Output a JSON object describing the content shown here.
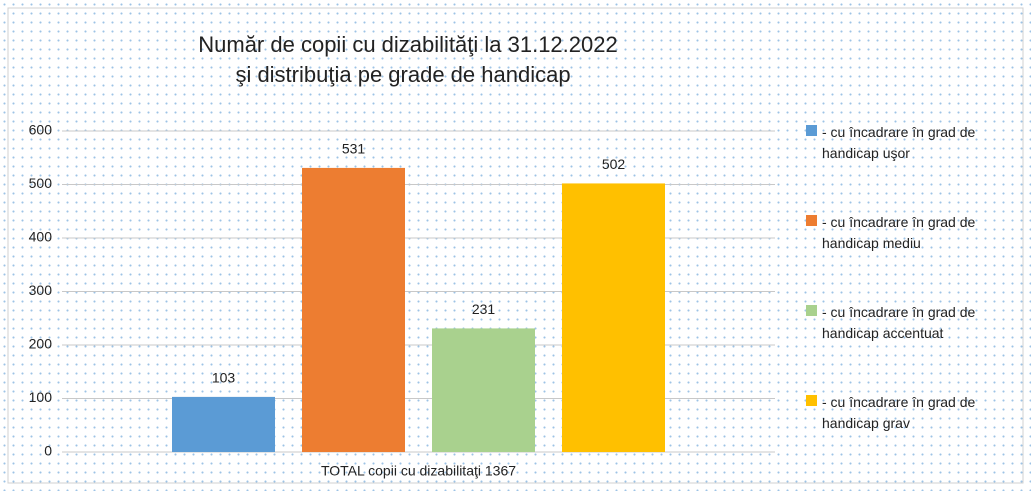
{
  "chart_data": {
    "type": "bar",
    "title": [
      "Număr de copii cu dizabilităţi la 31.12.2022",
      "şi distribuţia pe grade de handicap"
    ],
    "categories": [
      "TOTAL copii cu dizabilitaţi 1367"
    ],
    "series": [
      {
        "name": "- cu încadrare în grad de handicap uşor",
        "color": "#5b9bd5",
        "values": [
          103
        ]
      },
      {
        "name": "- cu încadrare în grad de handicap mediu",
        "color": "#ed7d31",
        "values": [
          531
        ]
      },
      {
        "name": "- cu încadrare în grad de handicap accentuat",
        "color": "#a9d18e",
        "values": [
          231
        ]
      },
      {
        "name": "- cu încadrare în grad de handicap grav",
        "color": "#ffc000",
        "values": [
          502
        ]
      }
    ],
    "ylim": [
      0,
      600
    ],
    "yticks": [
      0,
      100,
      200,
      300,
      400,
      500,
      600
    ],
    "grid": true,
    "legend": "right"
  }
}
